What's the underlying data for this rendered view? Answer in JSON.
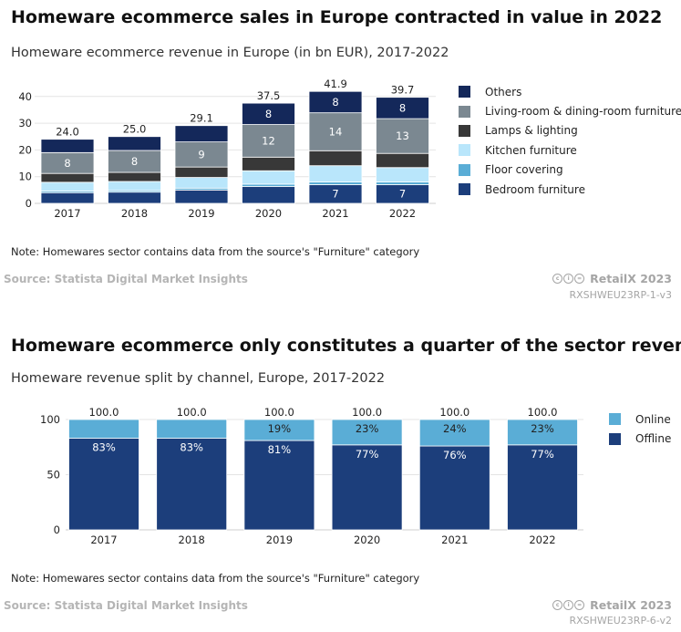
{
  "chart1": {
    "title": "Homeware ecommerce sales in Europe contracted in value in 2022",
    "subtitle": "Homeware ecommerce revenue in Europe (in bn EUR), 2017-2022",
    "note": "Note: Homewares sector contains data from the source's \"Furniture\" category",
    "source": "Source: Statista Digital Market Insights",
    "brand": "RetailX 2023",
    "code": "RXSHWEU23RP-1-v3"
  },
  "chart2": {
    "title": "Homeware ecommerce only constitutes a quarter of the sector revenue",
    "subtitle": "Homeware revenue split by channel, Europe, 2017-2022",
    "note": "Note: Homewares sector contains data from the source's \"Furniture\" category",
    "source": "Source: Statista Digital Market Insights",
    "brand": "RetailX 2023",
    "code": "RXSHWEU23RP-6-v2"
  },
  "colors": {
    "others": "#14285a",
    "living": "#7b8891",
    "lamps": "#383838",
    "kitchen": "#b9e6fb",
    "floor": "#5aadd6",
    "bedroom": "#1c3e7b",
    "online": "#5aadd6",
    "offline": "#1c3e7b"
  },
  "chart_data": [
    {
      "type": "bar",
      "stacked": true,
      "title": "Homeware ecommerce revenue in Europe (in bn EUR), 2017-2022",
      "categories": [
        "2017",
        "2018",
        "2019",
        "2020",
        "2021",
        "2022"
      ],
      "series": [
        {
          "key": "bedroom",
          "name": "Bedroom furniture",
          "values": [
            4,
            4.2,
            5,
            6.3,
            7,
            7
          ],
          "labels": [
            "",
            "",
            "",
            "",
            "7",
            "7"
          ]
        },
        {
          "key": "floor",
          "name": "Floor covering",
          "values": [
            0.6,
            0.6,
            0.7,
            0.9,
            1,
            1
          ],
          "labels": [
            "",
            "",
            "",
            "",
            "",
            ""
          ]
        },
        {
          "key": "kitchen",
          "name": "Kitchen furniture",
          "values": [
            3.3,
            3.4,
            4,
            5,
            6.1,
            5.4
          ],
          "labels": [
            "",
            "",
            "",
            "",
            "",
            ""
          ]
        },
        {
          "key": "lamps",
          "name": "Lamps & lighting",
          "values": [
            3.3,
            3.4,
            3.9,
            5.1,
            5.6,
            5.3
          ],
          "labels": [
            "",
            "",
            "",
            "",
            "",
            ""
          ]
        },
        {
          "key": "living",
          "name": "Living-room & dining-room furniture",
          "values": [
            7.8,
            8.2,
            9.4,
            12.2,
            14.2,
            13
          ],
          "labels": [
            "8",
            "8",
            "9",
            "12",
            "14",
            "13"
          ]
        },
        {
          "key": "others",
          "name": "Others",
          "values": [
            5,
            5.2,
            6.1,
            8,
            8,
            8
          ],
          "labels": [
            "",
            "",
            "",
            "8",
            "8",
            "8"
          ]
        }
      ],
      "totals": [
        "24.0",
        "25.0",
        "29.1",
        "37.5",
        "41.9",
        "39.7"
      ],
      "legend_order": [
        "others",
        "living",
        "lamps",
        "kitchen",
        "floor",
        "bedroom"
      ],
      "ylim": [
        0,
        43
      ],
      "yticks": [
        0,
        10,
        20,
        30,
        40
      ],
      "legend_position": "right"
    },
    {
      "type": "bar",
      "stacked": true,
      "title": "Homeware revenue split by channel, Europe, 2017-2022",
      "categories": [
        "2017",
        "2018",
        "2019",
        "2020",
        "2021",
        "2022"
      ],
      "series": [
        {
          "key": "offline",
          "name": "Offline",
          "values": [
            83,
            83,
            81,
            77,
            76,
            77
          ],
          "labels": [
            "83%",
            "83%",
            "81%",
            "77%",
            "76%",
            "77%"
          ]
        },
        {
          "key": "online",
          "name": "Online",
          "values": [
            17,
            17,
            19,
            23,
            24,
            23
          ],
          "labels": [
            "",
            "",
            "19%",
            "23%",
            "24%",
            "23%"
          ]
        }
      ],
      "totals": [
        "100.0",
        "100.0",
        "100.0",
        "100.0",
        "100.0",
        "100.0"
      ],
      "legend_order": [
        "online",
        "offline"
      ],
      "ylim": [
        0,
        100
      ],
      "yticks": [
        0,
        50,
        100
      ],
      "legend_position": "right"
    }
  ]
}
